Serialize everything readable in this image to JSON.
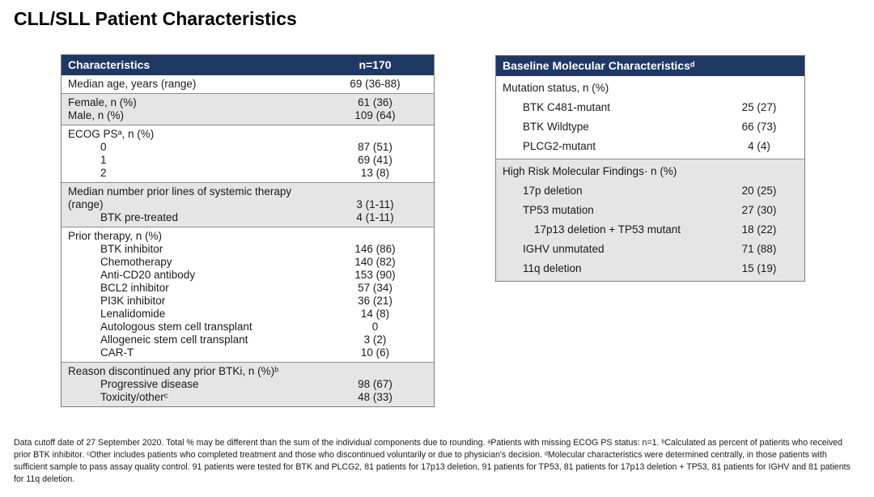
{
  "page": {
    "title": "CLL/SLL Patient Characteristics"
  },
  "colors": {
    "header_bg": "#1f3864",
    "header_text": "#ffffff",
    "shaded_row": "#e6e5e5",
    "border": "#7f7f7f",
    "text": "#1a1a1a"
  },
  "left_table": {
    "header": {
      "label": "Characteristics",
      "value": "n=170"
    },
    "sections": [
      {
        "shaded": false,
        "rows": [
          {
            "label": "Median age, years (range)",
            "value": "69 (36-88)",
            "indent": 0
          }
        ]
      },
      {
        "shaded": true,
        "rows": [
          {
            "label": "Female, n (%)",
            "value": "61 (36)",
            "indent": 0
          },
          {
            "label": "Male, n (%)",
            "value": "109 (64)",
            "indent": 0
          }
        ]
      },
      {
        "shaded": false,
        "rows": [
          {
            "label": "ECOG PSᵃ, n (%)",
            "value": "",
            "indent": 0
          },
          {
            "label": "0",
            "value": "87 (51)",
            "indent": 1
          },
          {
            "label": "1",
            "value": "69 (41)",
            "indent": 1
          },
          {
            "label": "2",
            "value": "13 (8)",
            "indent": 1
          }
        ]
      },
      {
        "shaded": true,
        "rows": [
          {
            "label": "Median number prior lines of systemic therapy (range)",
            "value": "3 (1-11)",
            "indent": 0,
            "valign": "bottom"
          },
          {
            "label": "BTK pre-treated",
            "value": "4 (1-11)",
            "indent": 1
          }
        ]
      },
      {
        "shaded": false,
        "rows": [
          {
            "label": "Prior therapy, n (%)",
            "value": "",
            "indent": 0
          },
          {
            "label": "BTK inhibitor",
            "value": "146 (86)",
            "indent": 1
          },
          {
            "label": "Chemotherapy",
            "value": "140 (82)",
            "indent": 1
          },
          {
            "label": "Anti-CD20 antibody",
            "value": "153 (90)",
            "indent": 1
          },
          {
            "label": "BCL2 inhibitor",
            "value": "57 (34)",
            "indent": 1
          },
          {
            "label": "PI3K inhibitor",
            "value": "36 (21)",
            "indent": 1
          },
          {
            "label": "Lenalidomide",
            "value": "14 (8)",
            "indent": 1
          },
          {
            "label": "Autologous stem cell transplant",
            "value": "0",
            "indent": 1
          },
          {
            "label": "Allogeneic stem cell transplant",
            "value": "3 (2)",
            "indent": 1
          },
          {
            "label": "CAR-T",
            "value": "10 (6)",
            "indent": 1
          }
        ]
      },
      {
        "shaded": true,
        "rows": [
          {
            "label": "Reason discontinued any prior BTKi, n (%)ᵇ",
            "value": "",
            "indent": 0
          },
          {
            "label": "Progressive disease",
            "value": "98 (67)",
            "indent": 1
          },
          {
            "label": "Toxicity/otherᶜ",
            "value": "48 (33)",
            "indent": 1
          }
        ]
      }
    ]
  },
  "right_table": {
    "header": {
      "label": "Baseline Molecular Characteristicsᵈ"
    },
    "sections": [
      {
        "shaded": false,
        "rows": [
          {
            "label": "Mutation status, n (%)",
            "value": "",
            "indent": 0
          },
          {
            "label": "BTK C481-mutant",
            "value": "25 (27)",
            "indent": 1
          },
          {
            "label": "BTK Wildtype",
            "value": "66 (73)",
            "indent": 1
          },
          {
            "label": "PLCG2-mutant",
            "value": "4 (4)",
            "indent": 1
          }
        ]
      },
      {
        "shaded": true,
        "rows": [
          {
            "label": "High Risk Molecular Findings· n (%)",
            "value": "",
            "indent": 0
          },
          {
            "label": "17p deletion",
            "value": "20 (25)",
            "indent": 1
          },
          {
            "label": "TP53 mutation",
            "value": "27 (30)",
            "indent": 1
          },
          {
            "label": "17p13 deletion + TP53 mutant",
            "value": "18 (22)",
            "indent": 2
          },
          {
            "label": "IGHV unmutated",
            "value": "71 (88)",
            "indent": 1
          },
          {
            "label": "11q deletion",
            "value": "15 (19)",
            "indent": 1
          }
        ]
      }
    ]
  },
  "footnote": "Data cutoff date of 27 September 2020. Total % may be different than the sum of the individual components due to rounding. ᵃPatients with missing ECOG PS status: n=1. ᵇCalculated as percent of patients who received prior BTK inhibitor. ᶜOther includes patients who completed treatment and those who discontinued voluntarily or due to physician's decision. ᵈMolecular characteristics were determined centrally, in those patients with sufficient sample to pass assay quality control. 91 patients were tested for BTK and PLCG2, 81 patients for 17p13 deletion, 91 patients for TP53, 81 patients for 17p13 deletion + TP53, 81 patients for IGHV and 81 patients for 11q deletion."
}
